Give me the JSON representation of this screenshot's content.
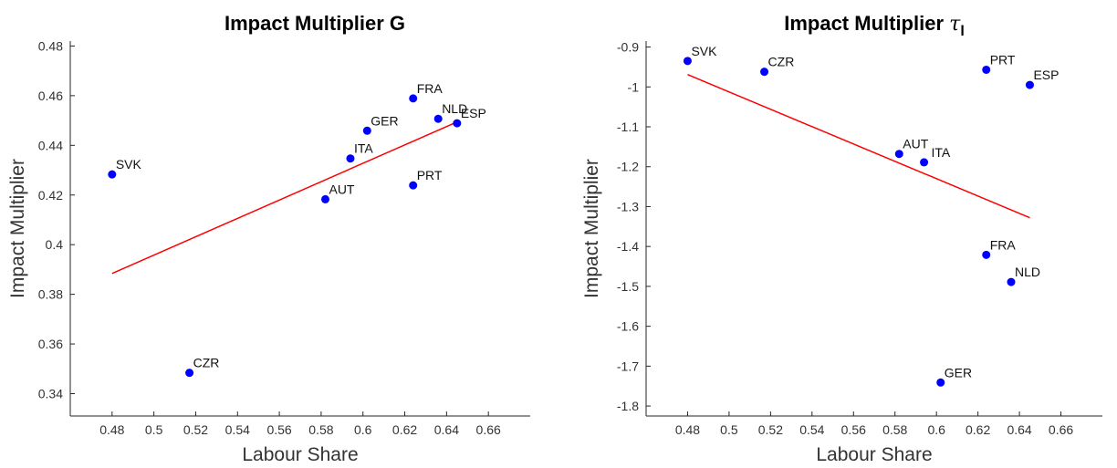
{
  "chart_data": [
    {
      "type": "scatter",
      "title": "Impact Multiplier G",
      "title_symbol": "",
      "title_subscript": "",
      "xlabel": "Labour Share",
      "ylabel": "Impact Multiplier",
      "xlim": [
        0.46,
        0.68
      ],
      "ylim": [
        0.331,
        0.482
      ],
      "xticks": [
        0.48,
        0.5,
        0.52,
        0.54,
        0.56,
        0.58,
        0.6,
        0.62,
        0.64,
        0.66
      ],
      "xtick_labels": [
        "0.48",
        "0.5",
        "0.52",
        "0.54",
        "0.56",
        "0.58",
        "0.6",
        "0.62",
        "0.64",
        "0.66"
      ],
      "yticks": [
        0.34,
        0.36,
        0.38,
        0.4,
        0.42,
        0.44,
        0.46,
        0.48
      ],
      "ytick_labels": [
        "0.34",
        "0.36",
        "0.38",
        "0.4",
        "0.42",
        "0.44",
        "0.46",
        "0.48"
      ],
      "grid": false,
      "point_color": "#0000ff",
      "line_color": "#ff0000",
      "points": [
        {
          "label": "SVK",
          "x": 0.48,
          "y": 0.4283
        },
        {
          "label": "CZR",
          "x": 0.517,
          "y": 0.3484
        },
        {
          "label": "AUT",
          "x": 0.582,
          "y": 0.4183
        },
        {
          "label": "ITA",
          "x": 0.594,
          "y": 0.4347
        },
        {
          "label": "GER",
          "x": 0.602,
          "y": 0.4459
        },
        {
          "label": "FRA",
          "x": 0.624,
          "y": 0.4589
        },
        {
          "label": "PRT",
          "x": 0.624,
          "y": 0.4239
        },
        {
          "label": "NLD",
          "x": 0.636,
          "y": 0.4507
        },
        {
          "label": "ESP",
          "x": 0.645,
          "y": 0.4489
        }
      ],
      "fit_line": {
        "x": [
          0.48,
          0.645
        ],
        "y": [
          0.3884,
          0.4494
        ]
      }
    },
    {
      "type": "scatter",
      "title": "Impact Multiplier ",
      "title_symbol": "τ",
      "title_subscript": "l",
      "xlabel": "Labour Share",
      "ylabel": "Impact Multiplier",
      "xlim": [
        0.46,
        0.68
      ],
      "ylim": [
        -1.825,
        -0.885
      ],
      "xticks": [
        0.48,
        0.5,
        0.52,
        0.54,
        0.56,
        0.58,
        0.6,
        0.62,
        0.64,
        0.66
      ],
      "xtick_labels": [
        "0.48",
        "0.5",
        "0.52",
        "0.54",
        "0.56",
        "0.58",
        "0.6",
        "0.62",
        "0.64",
        "0.66"
      ],
      "yticks": [
        -1.8,
        -1.7,
        -1.6,
        -1.5,
        -1.4,
        -1.3,
        -1.2,
        -1.1,
        -1.0,
        -0.9
      ],
      "ytick_labels": [
        "-1.8",
        "-1.7",
        "-1.6",
        "-1.5",
        "-1.4",
        "-1.3",
        "-1.2",
        "-1.1",
        "-1",
        "-0.9"
      ],
      "grid": false,
      "point_color": "#0000ff",
      "line_color": "#ff0000",
      "points": [
        {
          "label": "SVK",
          "x": 0.48,
          "y": -0.935
        },
        {
          "label": "CZR",
          "x": 0.517,
          "y": -0.962
        },
        {
          "label": "PRT",
          "x": 0.624,
          "y": -0.957
        },
        {
          "label": "ESP",
          "x": 0.645,
          "y": -0.995
        },
        {
          "label": "AUT",
          "x": 0.582,
          "y": -1.168
        },
        {
          "label": "ITA",
          "x": 0.594,
          "y": -1.189
        },
        {
          "label": "FRA",
          "x": 0.624,
          "y": -1.421
        },
        {
          "label": "NLD",
          "x": 0.636,
          "y": -1.489
        },
        {
          "label": "GER",
          "x": 0.602,
          "y": -1.741
        }
      ],
      "fit_line": {
        "x": [
          0.48,
          0.645
        ],
        "y": [
          -0.969,
          -1.328
        ]
      }
    }
  ]
}
